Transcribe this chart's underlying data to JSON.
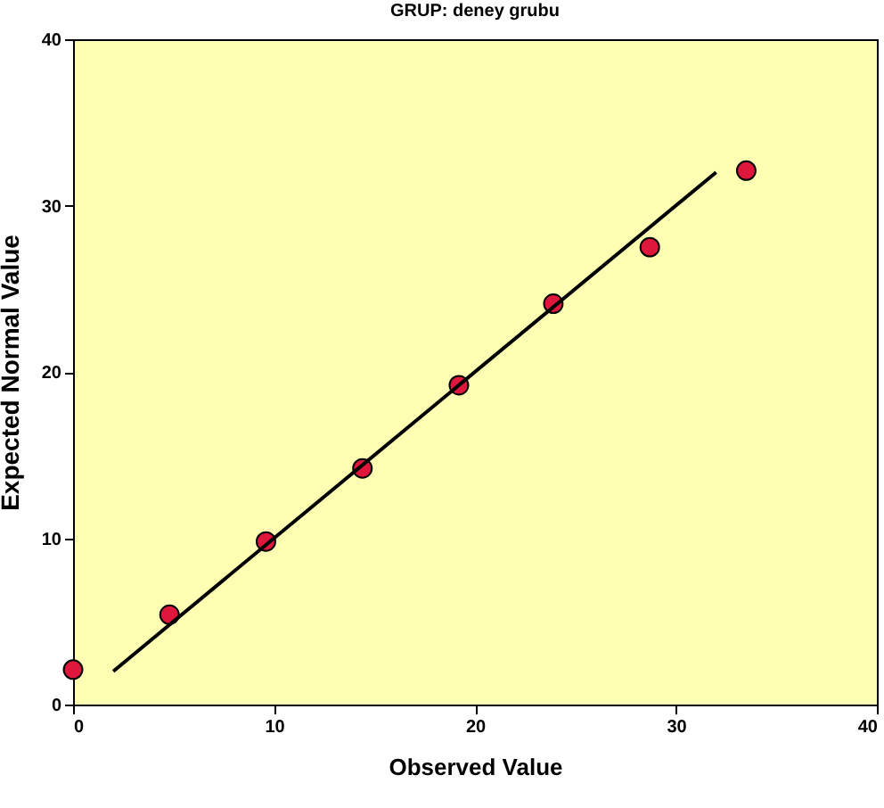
{
  "chart_data": {
    "type": "scatter",
    "title": "GRUP: deney grubu",
    "xlabel": "Observed Value",
    "ylabel": "Expected Normal Value",
    "xlim": [
      0,
      40
    ],
    "ylim": [
      0,
      40
    ],
    "xticks": [
      0,
      10,
      20,
      30,
      40
    ],
    "yticks": [
      0,
      10,
      20,
      30,
      40
    ],
    "grid": false,
    "marker": "circle",
    "series": [
      {
        "color": "#e0173c",
        "x": [
          0,
          4.8,
          9.6,
          14.4,
          19.2,
          23.9,
          28.7,
          33.5
        ],
        "values": [
          2.1,
          5.4,
          9.8,
          14.2,
          19.2,
          24.1,
          27.5,
          32.1
        ]
      },
      {
        "type": "line",
        "marker": "none",
        "color": "#000000",
        "x": [
          2,
          32
        ],
        "values": [
          2,
          32
        ]
      }
    ]
  }
}
